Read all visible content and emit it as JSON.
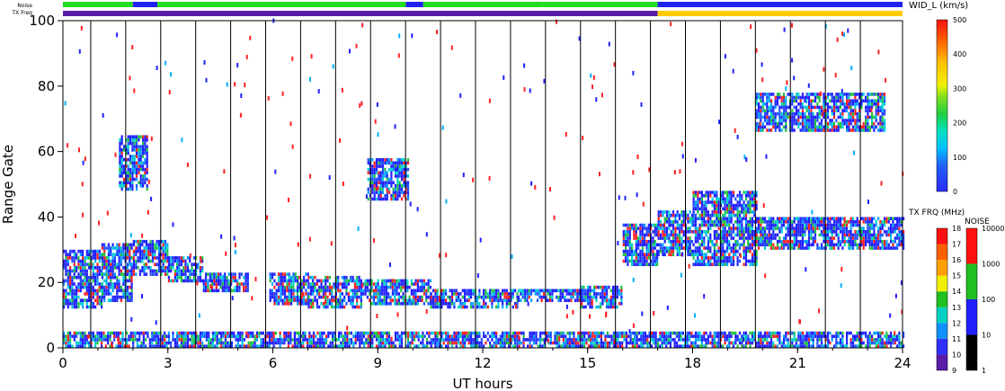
{
  "chart_data": {
    "type": "heatmap",
    "xlabel": "UT hours",
    "ylabel": "Range Gate",
    "xlim": [
      0,
      24
    ],
    "ylim": [
      0,
      100
    ],
    "x_ticks": [
      "0",
      "3",
      "6",
      "9",
      "12",
      "15",
      "18",
      "21",
      "24"
    ],
    "y_ticks": [
      "0",
      "20",
      "40",
      "60",
      "80",
      "100"
    ],
    "scan_boundaries_hours": [
      1,
      2,
      3,
      4,
      5,
      6,
      7,
      8,
      9,
      10,
      11,
      12,
      13,
      14,
      15,
      16,
      17,
      18,
      19,
      20,
      21,
      22,
      23
    ],
    "top_bars": {
      "noise_label": "Noise",
      "txfrq_label": "TX Freq",
      "noise_segments": [
        {
          "from": 0,
          "to": 2.0,
          "level": "green"
        },
        {
          "from": 2.0,
          "to": 2.7,
          "level": "blue"
        },
        {
          "from": 2.7,
          "to": 9.8,
          "level": "green"
        },
        {
          "from": 9.8,
          "to": 10.3,
          "level": "blue"
        },
        {
          "from": 10.3,
          "to": 13.7,
          "level": "green"
        },
        {
          "from": 13.7,
          "to": 17.0,
          "level": "green"
        },
        {
          "from": 17.0,
          "to": 24.0,
          "level": "blue"
        }
      ],
      "txfrq_segments": [
        {
          "from": 0,
          "to": 17.0,
          "level": "purple"
        },
        {
          "from": 17.0,
          "to": 24.0,
          "level": "yellow"
        }
      ]
    },
    "echo_bands": [
      {
        "name": "",
        "t0": 0.0,
        "t1": 1.1,
        "g0": 12,
        "g1": 30
      },
      {
        "name": "",
        "t0": 1.1,
        "t1": 2.0,
        "g0": 14,
        "g1": 32
      },
      {
        "name": "",
        "t0": 2.0,
        "t1": 3.0,
        "g0": 22,
        "g1": 33
      },
      {
        "name": "",
        "t0": 3.0,
        "t1": 4.0,
        "g0": 20,
        "g1": 28
      },
      {
        "name": "",
        "t0": 4.0,
        "t1": 5.3,
        "g0": 17,
        "g1": 23
      },
      {
        "name": "",
        "t0": 5.9,
        "t1": 7.0,
        "g0": 13,
        "g1": 23
      },
      {
        "name": "",
        "t0": 7.0,
        "t1": 8.5,
        "g0": 12,
        "g1": 22
      },
      {
        "name": "",
        "t0": 8.5,
        "t1": 10.5,
        "g0": 13,
        "g1": 21
      },
      {
        "name": "",
        "t0": 10.5,
        "t1": 13.0,
        "g0": 12,
        "g1": 18
      },
      {
        "name": "",
        "t0": 13.0,
        "t1": 14.8,
        "g0": 14,
        "g1": 18
      },
      {
        "name": "",
        "t0": 14.8,
        "t1": 16.0,
        "g0": 12,
        "g1": 19
      },
      {
        "name": "",
        "t0": 16.0,
        "t1": 17.0,
        "g0": 25,
        "g1": 38
      },
      {
        "name": "",
        "t0": 17.0,
        "t1": 18.0,
        "g0": 28,
        "g1": 42
      },
      {
        "name": "",
        "t0": 18.0,
        "t1": 19.8,
        "g0": 25,
        "g1": 48
      },
      {
        "name": "",
        "t0": 19.8,
        "t1": 24.0,
        "g0": 30,
        "g1": 40
      },
      {
        "name": "",
        "t0": 0.0,
        "t1": 24.0,
        "g0": 0,
        "g1": 5
      },
      {
        "name": "",
        "t0": 8.7,
        "t1": 9.9,
        "g0": 45,
        "g1": 58
      },
      {
        "name": "",
        "t0": 1.6,
        "t1": 2.4,
        "g0": 48,
        "g1": 65
      },
      {
        "name": "",
        "t0": 19.8,
        "t1": 23.5,
        "g0": 66,
        "g1": 78
      }
    ],
    "colorbars": [
      {
        "title": "WID_L (km/s)",
        "range": [
          0,
          500
        ],
        "ticks": [
          "0",
          "100",
          "200",
          "300",
          "400",
          "500"
        ]
      },
      {
        "title": "TX FRQ (MHz)",
        "range": [
          9,
          18
        ],
        "ticks": [
          "9",
          "10",
          "11",
          "12",
          "13",
          "14",
          "15",
          "16",
          "17",
          "18"
        ]
      },
      {
        "title": "NOISE",
        "scale": "log",
        "ticks": [
          "1",
          "10",
          "100",
          "1000",
          "10000"
        ]
      }
    ]
  },
  "colors": {
    "scatter_blue": "#1f1fff",
    "noise_green": "#22dd22",
    "noise_blue": "#2222ee",
    "tx_purple": "#5a1ca8",
    "tx_yellow": "#ffcc00",
    "axis": "#000000"
  }
}
